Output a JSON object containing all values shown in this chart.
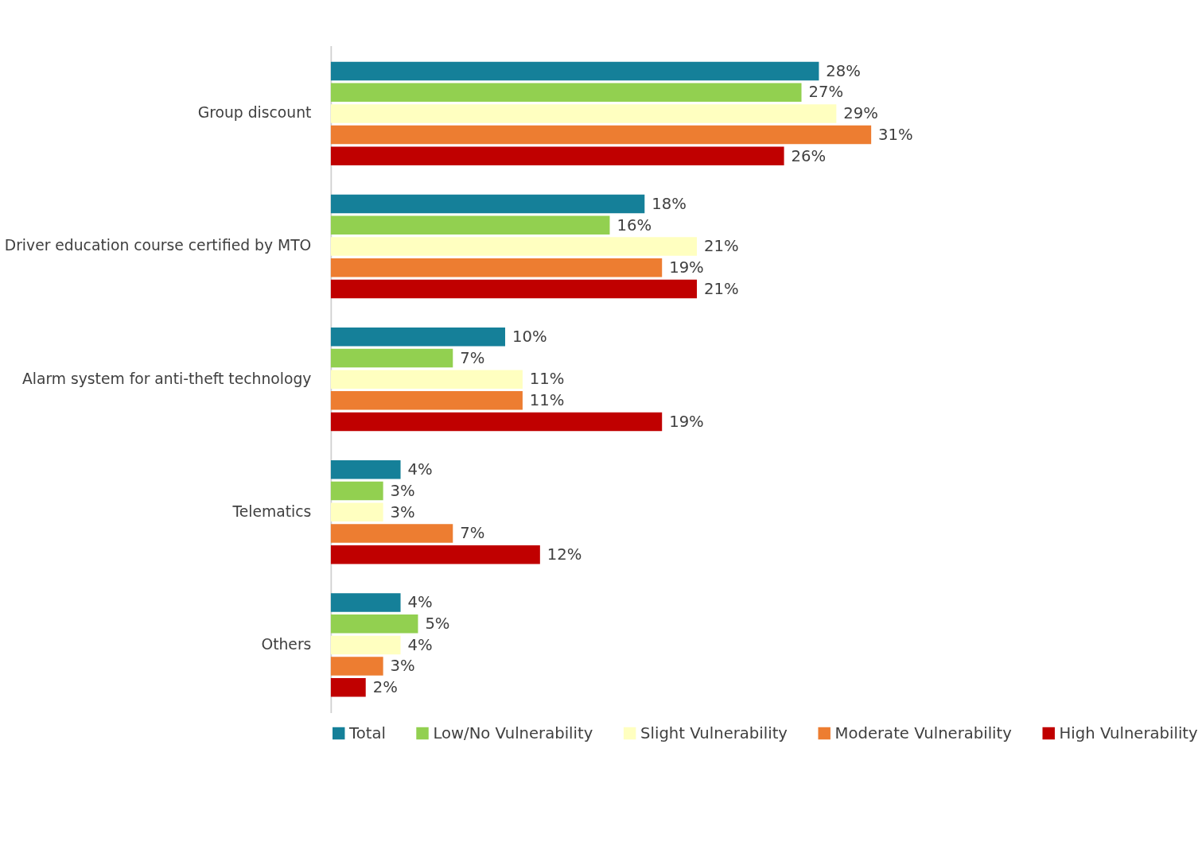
{
  "chart_data": {
    "type": "bar",
    "orientation": "horizontal",
    "categories": [
      "Group discount",
      "Driver education course certified by MTO",
      "Alarm system for anti-theft technology",
      "Telematics",
      "Others"
    ],
    "series": [
      {
        "name": "Total",
        "color": "#158099",
        "values": [
          28,
          18,
          10,
          4,
          4
        ],
        "value_labels": [
          "28%",
          "18%",
          "10%",
          "4%",
          "4%"
        ]
      },
      {
        "name": "Low/No Vulnerability",
        "color": "#92d050",
        "values": [
          27,
          16,
          7,
          3,
          5
        ],
        "value_labels": [
          "27%",
          "16%",
          "7%",
          "3%",
          "5%"
        ]
      },
      {
        "name": "Slight Vulnerability",
        "color": "#ffffc0",
        "values": [
          29,
          21,
          11,
          3,
          4
        ],
        "value_labels": [
          "29%",
          "21%",
          "11%",
          "3%",
          "4%"
        ]
      },
      {
        "name": "Moderate Vulnerability",
        "color": "#ed7d31",
        "values": [
          31,
          19,
          11,
          7,
          3
        ],
        "value_labels": [
          "31%",
          "19%",
          "11%",
          "7%",
          "3%"
        ]
      },
      {
        "name": "High Vulnerability",
        "color": "#c00000",
        "values": [
          26,
          21,
          19,
          12,
          2
        ],
        "value_labels": [
          "26%",
          "21%",
          "19%",
          "12%",
          "2%"
        ]
      }
    ],
    "legend": "bottom"
  }
}
